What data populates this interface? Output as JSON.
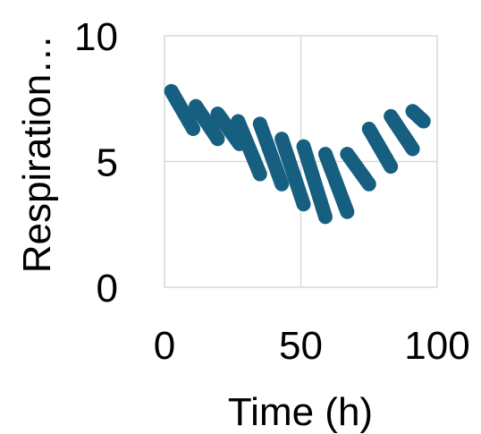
{
  "chart_data": {
    "type": "scatter",
    "title": "",
    "xlabel": "Time (h)",
    "ylabel": "Respiration…",
    "xlim": [
      0,
      100
    ],
    "ylim": [
      0,
      10
    ],
    "xticks": [
      "0",
      "50",
      "100"
    ],
    "yticks": [
      "0",
      "5",
      "10"
    ],
    "grid": true,
    "color": "#175F80",
    "series": [
      {
        "segments": [
          {
            "x": [
              2.5,
              10.5
            ],
            "y": [
              7.8,
              6.3
            ]
          },
          {
            "x": [
              11.5,
              19.5
            ],
            "y": [
              7.2,
              5.9
            ]
          },
          {
            "x": [
              19.5,
              27.5
            ],
            "y": [
              6.9,
              5.7
            ]
          },
          {
            "x": [
              27.0,
              35.0
            ],
            "y": [
              6.6,
              4.5
            ]
          },
          {
            "x": [
              35.0,
              43.0
            ],
            "y": [
              6.5,
              4.1
            ]
          },
          {
            "x": [
              43.0,
              51.0
            ],
            "y": [
              5.9,
              3.3
            ]
          },
          {
            "x": [
              51.0,
              59.0
            ],
            "y": [
              5.6,
              2.8
            ]
          },
          {
            "x": [
              59.0,
              67.0
            ],
            "y": [
              5.3,
              3.0
            ]
          },
          {
            "x": [
              67.0,
              75.0
            ],
            "y": [
              5.3,
              4.1
            ]
          },
          {
            "x": [
              75.0,
              83.0
            ],
            "y": [
              6.3,
              4.8
            ]
          },
          {
            "x": [
              83.0,
              91.0
            ],
            "y": [
              6.8,
              5.5
            ]
          },
          {
            "x": [
              91.0,
              95.0
            ],
            "y": [
              7.0,
              6.6
            ]
          }
        ]
      }
    ]
  }
}
